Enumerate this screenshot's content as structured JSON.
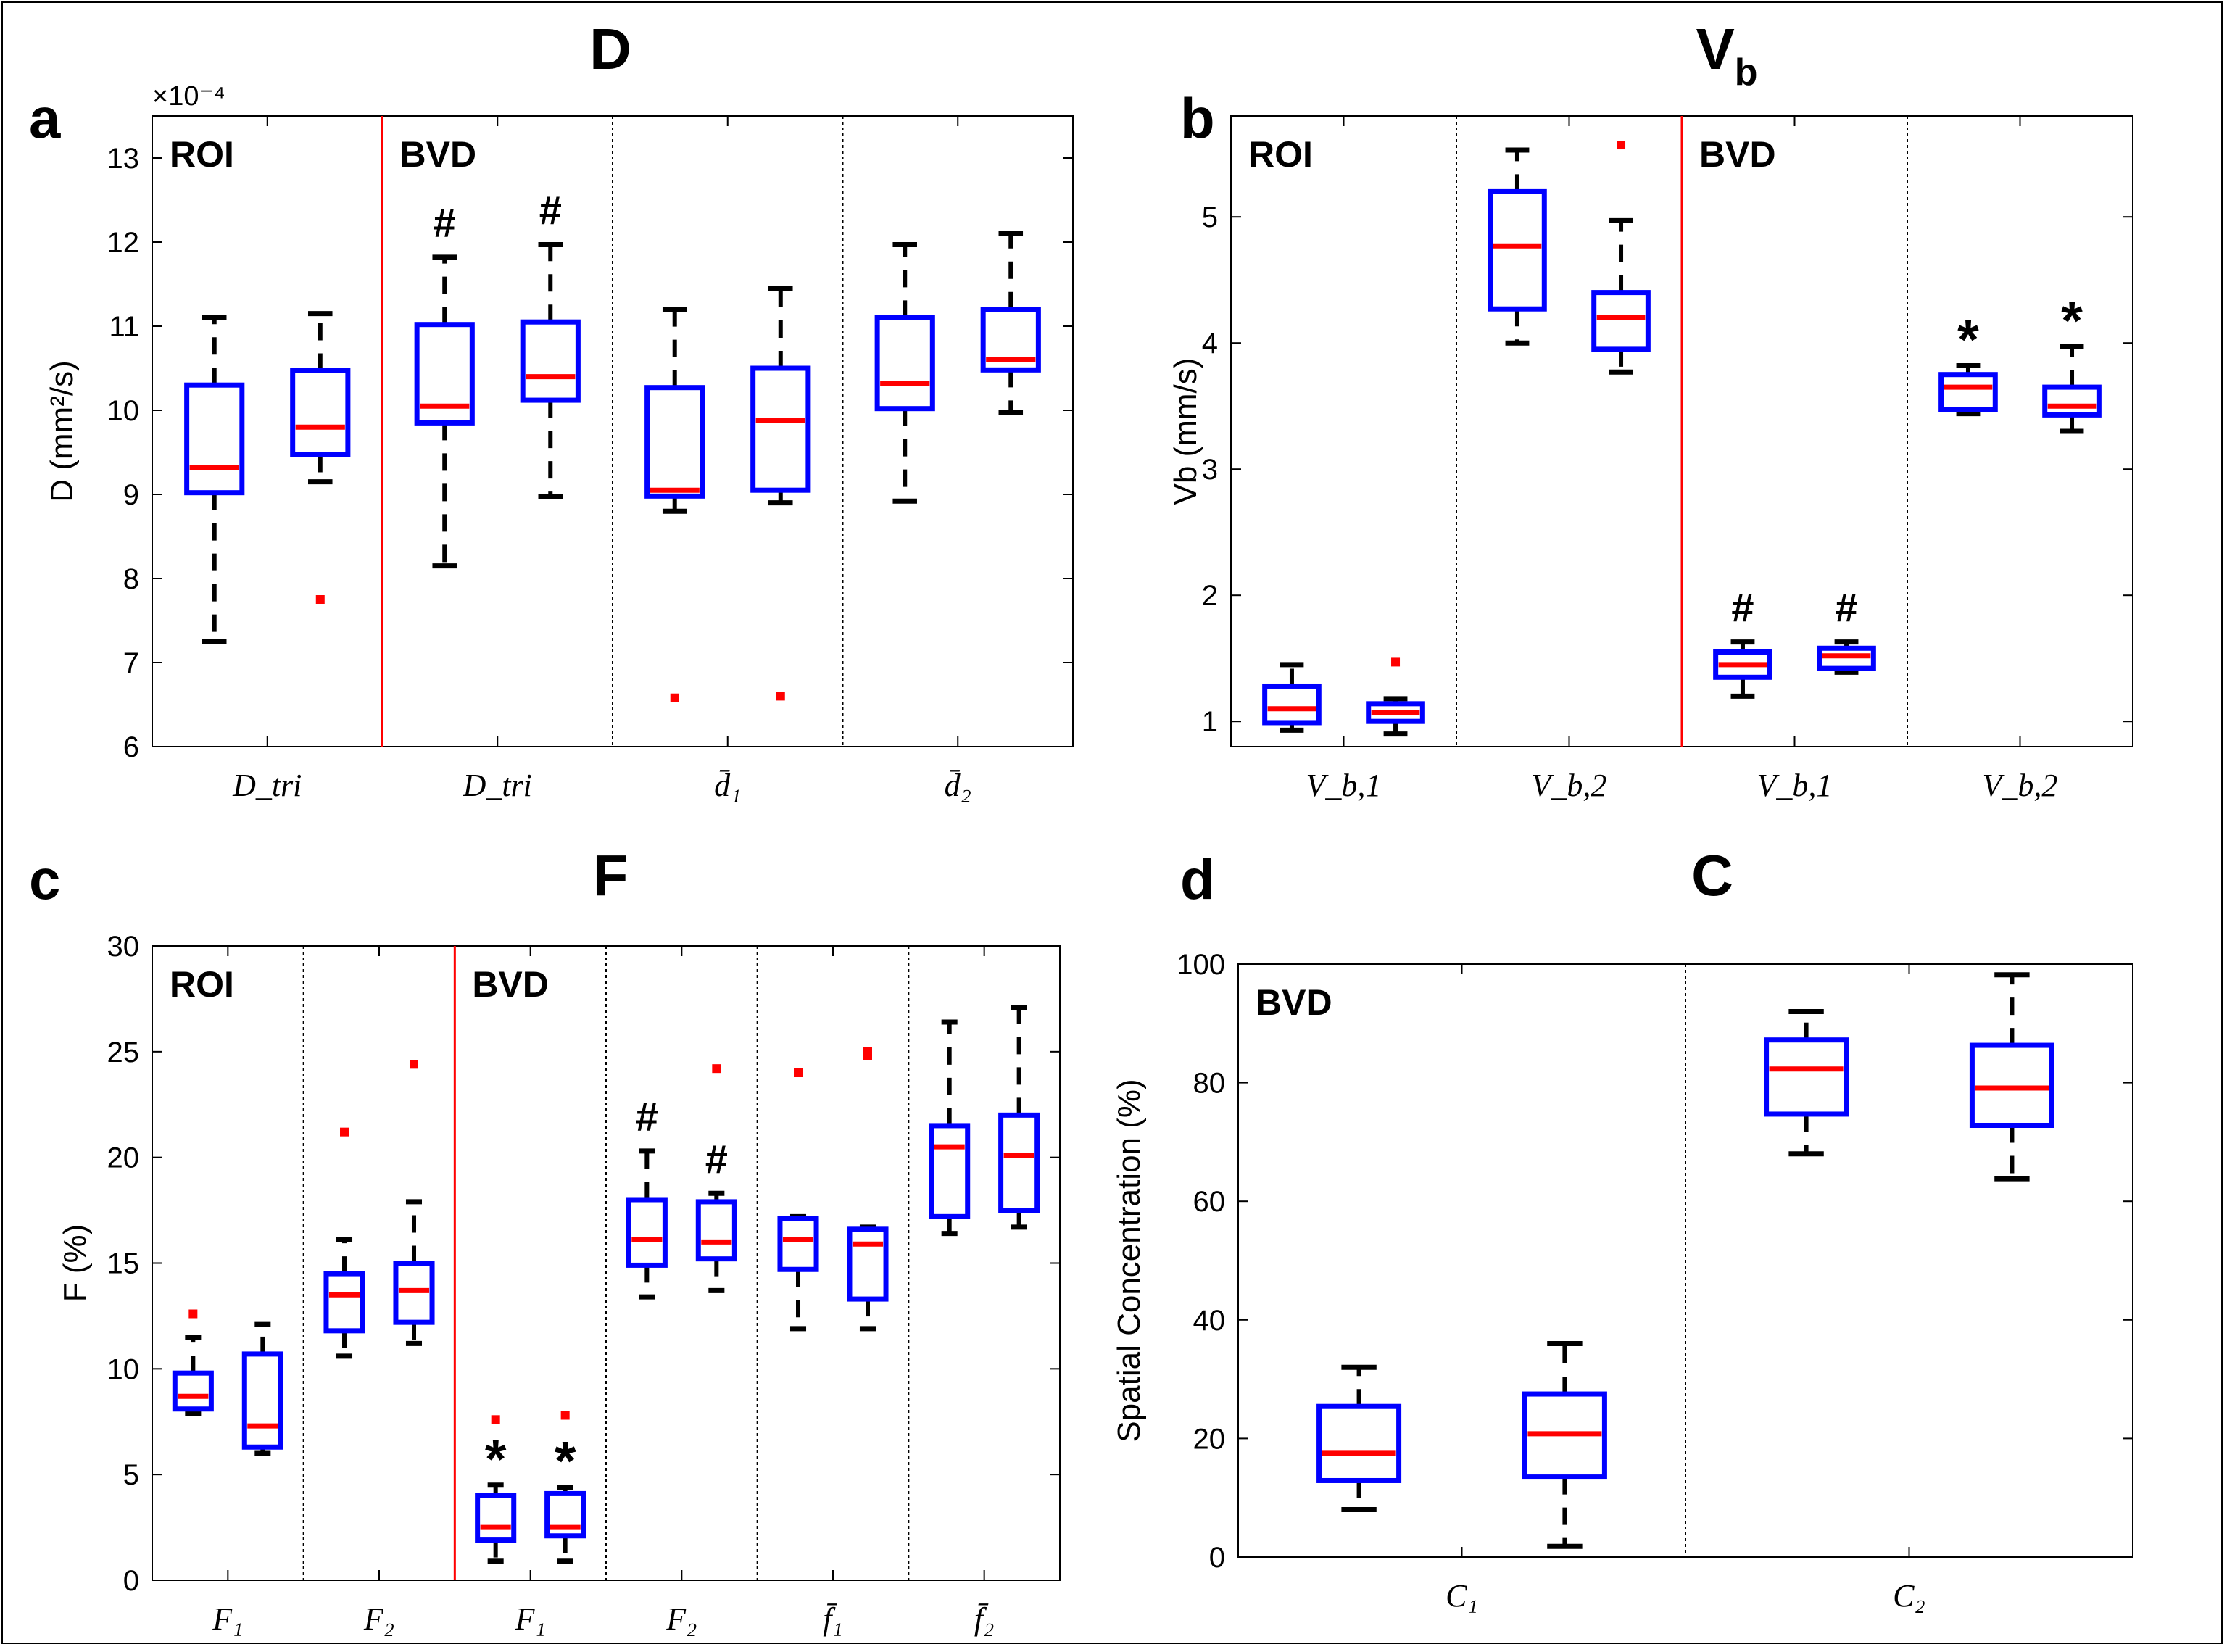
{
  "figure": {
    "panel_titles": {
      "a": "D",
      "b": "Vb",
      "c": "F",
      "d": "C"
    },
    "colors": {
      "box": "#0000ff",
      "median": "#ff0000",
      "whisker": "#000000",
      "outlier": "#ff0000",
      "region_divider": "#ff0000",
      "group_divider": "#000000",
      "marker": "#000000"
    }
  },
  "chart_data": [
    {
      "panel": "a",
      "type": "box",
      "title": "D",
      "ylabel": "D (mm²/s)",
      "scale_note": "×10⁻⁴",
      "ylim": [
        6,
        13.5
      ],
      "yticks": [
        6,
        7,
        8,
        9,
        10,
        11,
        12,
        13
      ],
      "groups": [
        {
          "label": "D_tri",
          "region": "ROI"
        },
        {
          "label": "D_tri",
          "region": "BVD"
        },
        {
          "label": "d̄₁",
          "region": "BVD"
        },
        {
          "label": "d̄₂",
          "region": "BVD"
        }
      ],
      "region_labels": [
        "ROI",
        "BVD"
      ],
      "red_divider_after_group": 0,
      "boxes": [
        {
          "group": 0,
          "whisker_low": 7.25,
          "q1": 9.02,
          "median": 9.32,
          "q3": 10.3,
          "whisker_high": 11.1,
          "outliers": []
        },
        {
          "group": 0,
          "whisker_low": 9.15,
          "q1": 9.47,
          "median": 9.8,
          "q3": 10.47,
          "whisker_high": 11.15,
          "outliers": [
            7.75
          ]
        },
        {
          "group": 1,
          "whisker_low": 8.15,
          "q1": 9.85,
          "median": 10.05,
          "q3": 11.02,
          "whisker_high": 11.82,
          "outliers": [],
          "marker": "#"
        },
        {
          "group": 1,
          "whisker_low": 8.97,
          "q1": 10.12,
          "median": 10.4,
          "q3": 11.05,
          "whisker_high": 11.97,
          "outliers": [],
          "marker": "#"
        },
        {
          "group": 2,
          "whisker_low": 8.8,
          "q1": 8.98,
          "median": 9.05,
          "q3": 10.27,
          "whisker_high": 11.2,
          "outliers": [
            6.58
          ]
        },
        {
          "group": 2,
          "whisker_low": 8.9,
          "q1": 9.05,
          "median": 9.88,
          "q3": 10.5,
          "whisker_high": 11.45,
          "outliers": [
            6.6
          ]
        },
        {
          "group": 3,
          "whisker_low": 8.92,
          "q1": 10.02,
          "median": 10.32,
          "q3": 11.1,
          "whisker_high": 11.97,
          "outliers": []
        },
        {
          "group": 3,
          "whisker_low": 9.97,
          "q1": 10.48,
          "median": 10.6,
          "q3": 11.2,
          "whisker_high": 12.1,
          "outliers": []
        }
      ]
    },
    {
      "panel": "b",
      "type": "box",
      "title": "Vb",
      "ylabel": "Vb (mm/s)",
      "ylim": [
        0.8,
        5.8
      ],
      "yticks": [
        1,
        2,
        3,
        4,
        5
      ],
      "groups": [
        {
          "label": "V_b,1",
          "region": "ROI"
        },
        {
          "label": "V_b,2",
          "region": "ROI"
        },
        {
          "label": "V_b,1",
          "region": "BVD"
        },
        {
          "label": "V_b,2",
          "region": "BVD"
        }
      ],
      "region_labels": [
        "ROI",
        "BVD"
      ],
      "red_divider_after_group": 1,
      "boxes": [
        {
          "group": 0,
          "whisker_low": 0.93,
          "q1": 0.99,
          "median": 1.1,
          "q3": 1.28,
          "whisker_high": 1.45,
          "outliers": []
        },
        {
          "group": 0,
          "whisker_low": 0.9,
          "q1": 1.0,
          "median": 1.07,
          "q3": 1.14,
          "whisker_high": 1.18,
          "outliers": [
            1.47
          ]
        },
        {
          "group": 1,
          "whisker_low": 4.0,
          "q1": 4.27,
          "median": 4.77,
          "q3": 5.2,
          "whisker_high": 5.53,
          "outliers": []
        },
        {
          "group": 1,
          "whisker_low": 3.77,
          "q1": 3.95,
          "median": 4.2,
          "q3": 4.4,
          "whisker_high": 4.97,
          "outliers": [
            5.57
          ]
        },
        {
          "group": 2,
          "whisker_low": 1.2,
          "q1": 1.35,
          "median": 1.45,
          "q3": 1.55,
          "whisker_high": 1.63,
          "outliers": [],
          "marker": "#"
        },
        {
          "group": 2,
          "whisker_low": 1.39,
          "q1": 1.42,
          "median": 1.52,
          "q3": 1.58,
          "whisker_high": 1.63,
          "outliers": [],
          "marker": "#"
        },
        {
          "group": 3,
          "whisker_low": 3.44,
          "q1": 3.47,
          "median": 3.65,
          "q3": 3.75,
          "whisker_high": 3.82,
          "outliers": [],
          "marker": "*"
        },
        {
          "group": 3,
          "whisker_low": 3.3,
          "q1": 3.43,
          "median": 3.5,
          "q3": 3.65,
          "whisker_high": 3.97,
          "outliers": [],
          "marker": "*"
        }
      ]
    },
    {
      "panel": "c",
      "type": "box",
      "title": "F",
      "ylabel": "F (%)",
      "ylim": [
        0,
        30
      ],
      "yticks": [
        0,
        5,
        10,
        15,
        20,
        25,
        30
      ],
      "groups": [
        {
          "label": "F₁",
          "region": "ROI"
        },
        {
          "label": "F₂",
          "region": "ROI"
        },
        {
          "label": "F₁",
          "region": "BVD"
        },
        {
          "label": "F₂",
          "region": "BVD"
        },
        {
          "label": "f̄₁",
          "region": "BVD"
        },
        {
          "label": "f̄₂",
          "region": "BVD"
        }
      ],
      "region_labels": [
        "ROI",
        "BVD"
      ],
      "red_divider_after_group": 1,
      "boxes": [
        {
          "group": 0,
          "whisker_low": 7.9,
          "q1": 8.1,
          "median": 8.7,
          "q3": 9.8,
          "whisker_high": 11.5,
          "outliers": [
            12.6
          ]
        },
        {
          "group": 0,
          "whisker_low": 6.0,
          "q1": 6.3,
          "median": 7.3,
          "q3": 10.7,
          "whisker_high": 12.1,
          "outliers": []
        },
        {
          "group": 1,
          "whisker_low": 10.6,
          "q1": 11.8,
          "median": 13.5,
          "q3": 14.5,
          "whisker_high": 16.1,
          "outliers": [
            21.2
          ]
        },
        {
          "group": 1,
          "whisker_low": 11.2,
          "q1": 12.2,
          "median": 13.7,
          "q3": 15.0,
          "whisker_high": 17.9,
          "outliers": [
            24.4
          ]
        },
        {
          "group": 2,
          "whisker_low": 0.9,
          "q1": 1.9,
          "median": 2.5,
          "q3": 4.0,
          "whisker_high": 4.5,
          "outliers": [
            7.6
          ],
          "marker": "*"
        },
        {
          "group": 2,
          "whisker_low": 0.9,
          "q1": 2.1,
          "median": 2.5,
          "q3": 4.1,
          "whisker_high": 4.4,
          "outliers": [
            7.8
          ],
          "marker": "*"
        },
        {
          "group": 3,
          "whisker_low": 13.4,
          "q1": 14.9,
          "median": 16.1,
          "q3": 18.0,
          "whisker_high": 20.3,
          "outliers": [],
          "marker": "#"
        },
        {
          "group": 3,
          "whisker_low": 13.7,
          "q1": 15.2,
          "median": 16.0,
          "q3": 17.9,
          "whisker_high": 18.3,
          "outliers": [
            24.2
          ],
          "marker": "#"
        },
        {
          "group": 4,
          "whisker_low": 11.9,
          "q1": 14.7,
          "median": 16.1,
          "q3": 17.1,
          "whisker_high": 17.2,
          "outliers": [
            24.0
          ]
        },
        {
          "group": 4,
          "whisker_low": 11.9,
          "q1": 13.3,
          "median": 15.9,
          "q3": 16.6,
          "whisker_high": 16.7,
          "outliers": [
            24.8,
            25.0
          ]
        },
        {
          "group": 5,
          "whisker_low": 16.4,
          "q1": 17.2,
          "median": 20.5,
          "q3": 21.5,
          "whisker_high": 26.4,
          "outliers": []
        },
        {
          "group": 5,
          "whisker_low": 16.7,
          "q1": 17.5,
          "median": 20.1,
          "q3": 22.0,
          "whisker_high": 27.1,
          "outliers": []
        }
      ]
    },
    {
      "panel": "d",
      "type": "box",
      "title": "C",
      "ylabel": "Spatial Concentration (%)",
      "ylim": [
        0,
        100
      ],
      "yticks": [
        0,
        20,
        40,
        60,
        80,
        100
      ],
      "groups": [
        {
          "label": "C₁",
          "region": "BVD"
        },
        {
          "label": "C₂",
          "region": "BVD"
        }
      ],
      "region_labels": [
        "BVD"
      ],
      "red_divider_after_group": null,
      "boxes": [
        {
          "group": 0,
          "whisker_low": 8,
          "q1": 12.9,
          "median": 17.5,
          "q3": 25.4,
          "whisker_high": 32,
          "outliers": []
        },
        {
          "group": 0,
          "whisker_low": 1.8,
          "q1": 13.5,
          "median": 20.8,
          "q3": 27.5,
          "whisker_high": 36,
          "outliers": []
        },
        {
          "group": 1,
          "whisker_low": 68,
          "q1": 74.7,
          "median": 82.3,
          "q3": 87.2,
          "whisker_high": 92,
          "outliers": []
        },
        {
          "group": 1,
          "whisker_low": 63.8,
          "q1": 72.8,
          "median": 79.1,
          "q3": 86.3,
          "whisker_high": 98.2,
          "outliers": []
        }
      ]
    }
  ]
}
